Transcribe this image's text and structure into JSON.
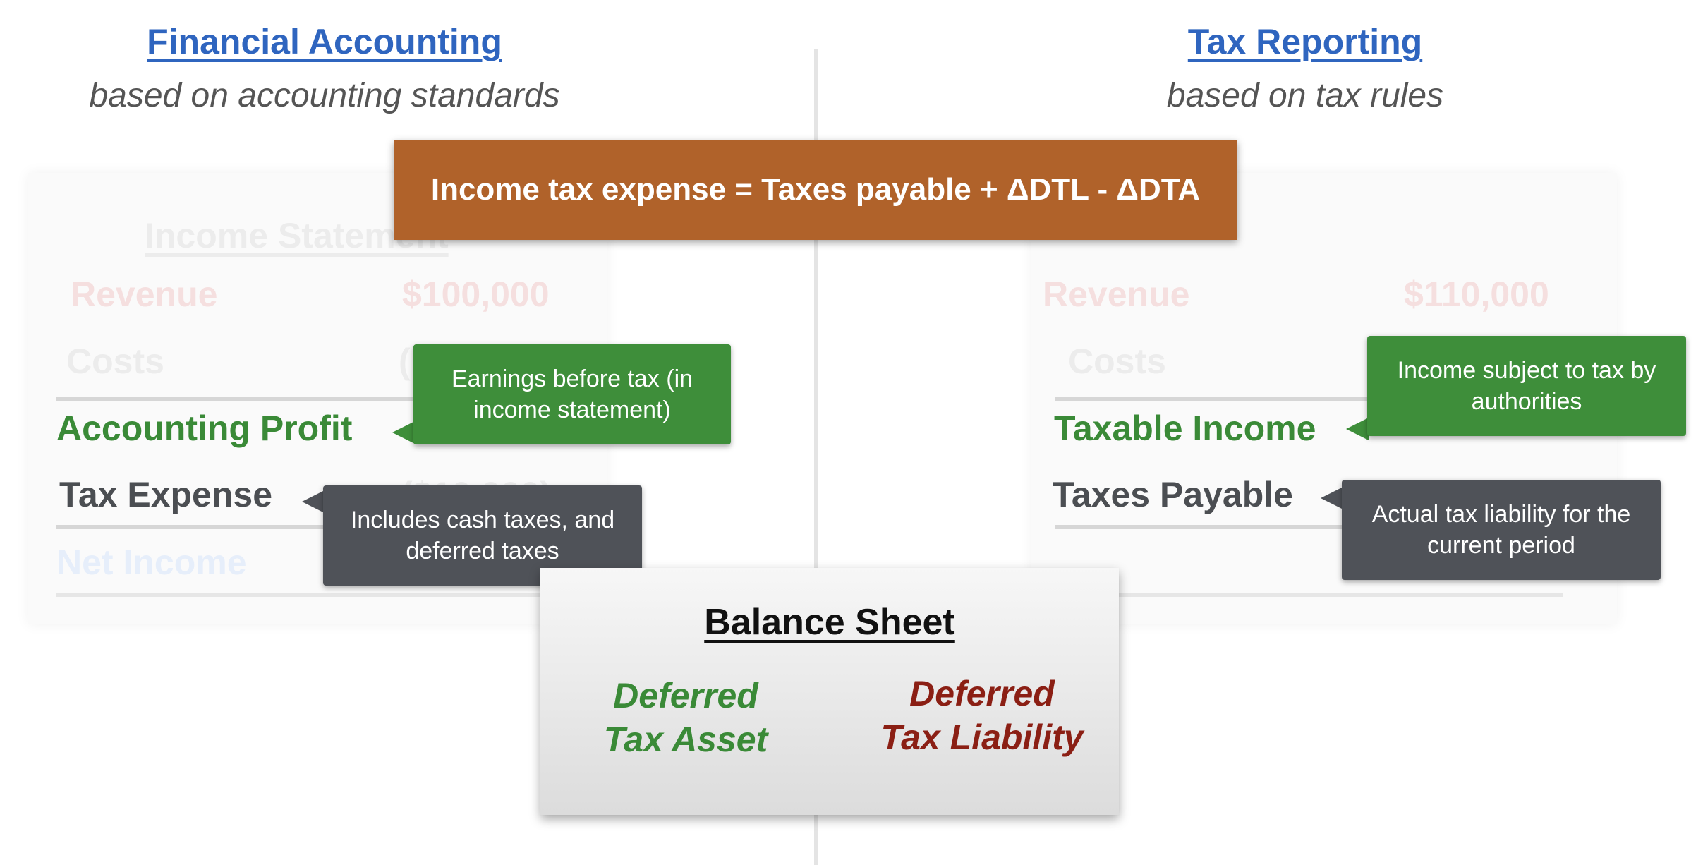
{
  "left_column": {
    "title": "Financial Accounting",
    "subtitle": "based on accounting standards"
  },
  "right_column": {
    "title": "Tax Reporting",
    "subtitle": "based on tax rules"
  },
  "formula": "Income tax expense = Taxes payable + ΔDTL - ΔDTA",
  "income_statement": {
    "title": "Income Statement",
    "revenue_label": "Revenue",
    "revenue_value": "$100,000",
    "costs_label": "Costs",
    "costs_value_partial": "(",
    "accounting_profit_label": "Accounting Profit",
    "tax_expense_label": "Tax Expense",
    "tax_expense_value_partial": "($10,000)",
    "net_income_label": "Net Income"
  },
  "tax_statement": {
    "revenue_label": "Revenue",
    "revenue_value": "$110,000",
    "costs_label": "Costs",
    "taxable_income_label": "Taxable Income",
    "taxes_payable_label": "Taxes Payable"
  },
  "callouts": {
    "accounting_profit": "Earnings before tax (in income statement)",
    "tax_expense": "Includes cash taxes, and deferred taxes",
    "taxable_income": "Income subject to tax by authorities",
    "taxes_payable": "Actual tax liability for the current period"
  },
  "balance_sheet": {
    "title": "Balance Sheet",
    "dta_line1": "Deferred",
    "dta_line2": "Tax Asset",
    "dtl_line1": "Deferred",
    "dtl_line2": "Tax Liability"
  },
  "colors": {
    "heading_blue": "#2f65bf",
    "formula_orange": "#b0622a",
    "callout_green": "#3e8e3a",
    "callout_dark": "#4f5258",
    "liability_red": "#8b1f14"
  }
}
